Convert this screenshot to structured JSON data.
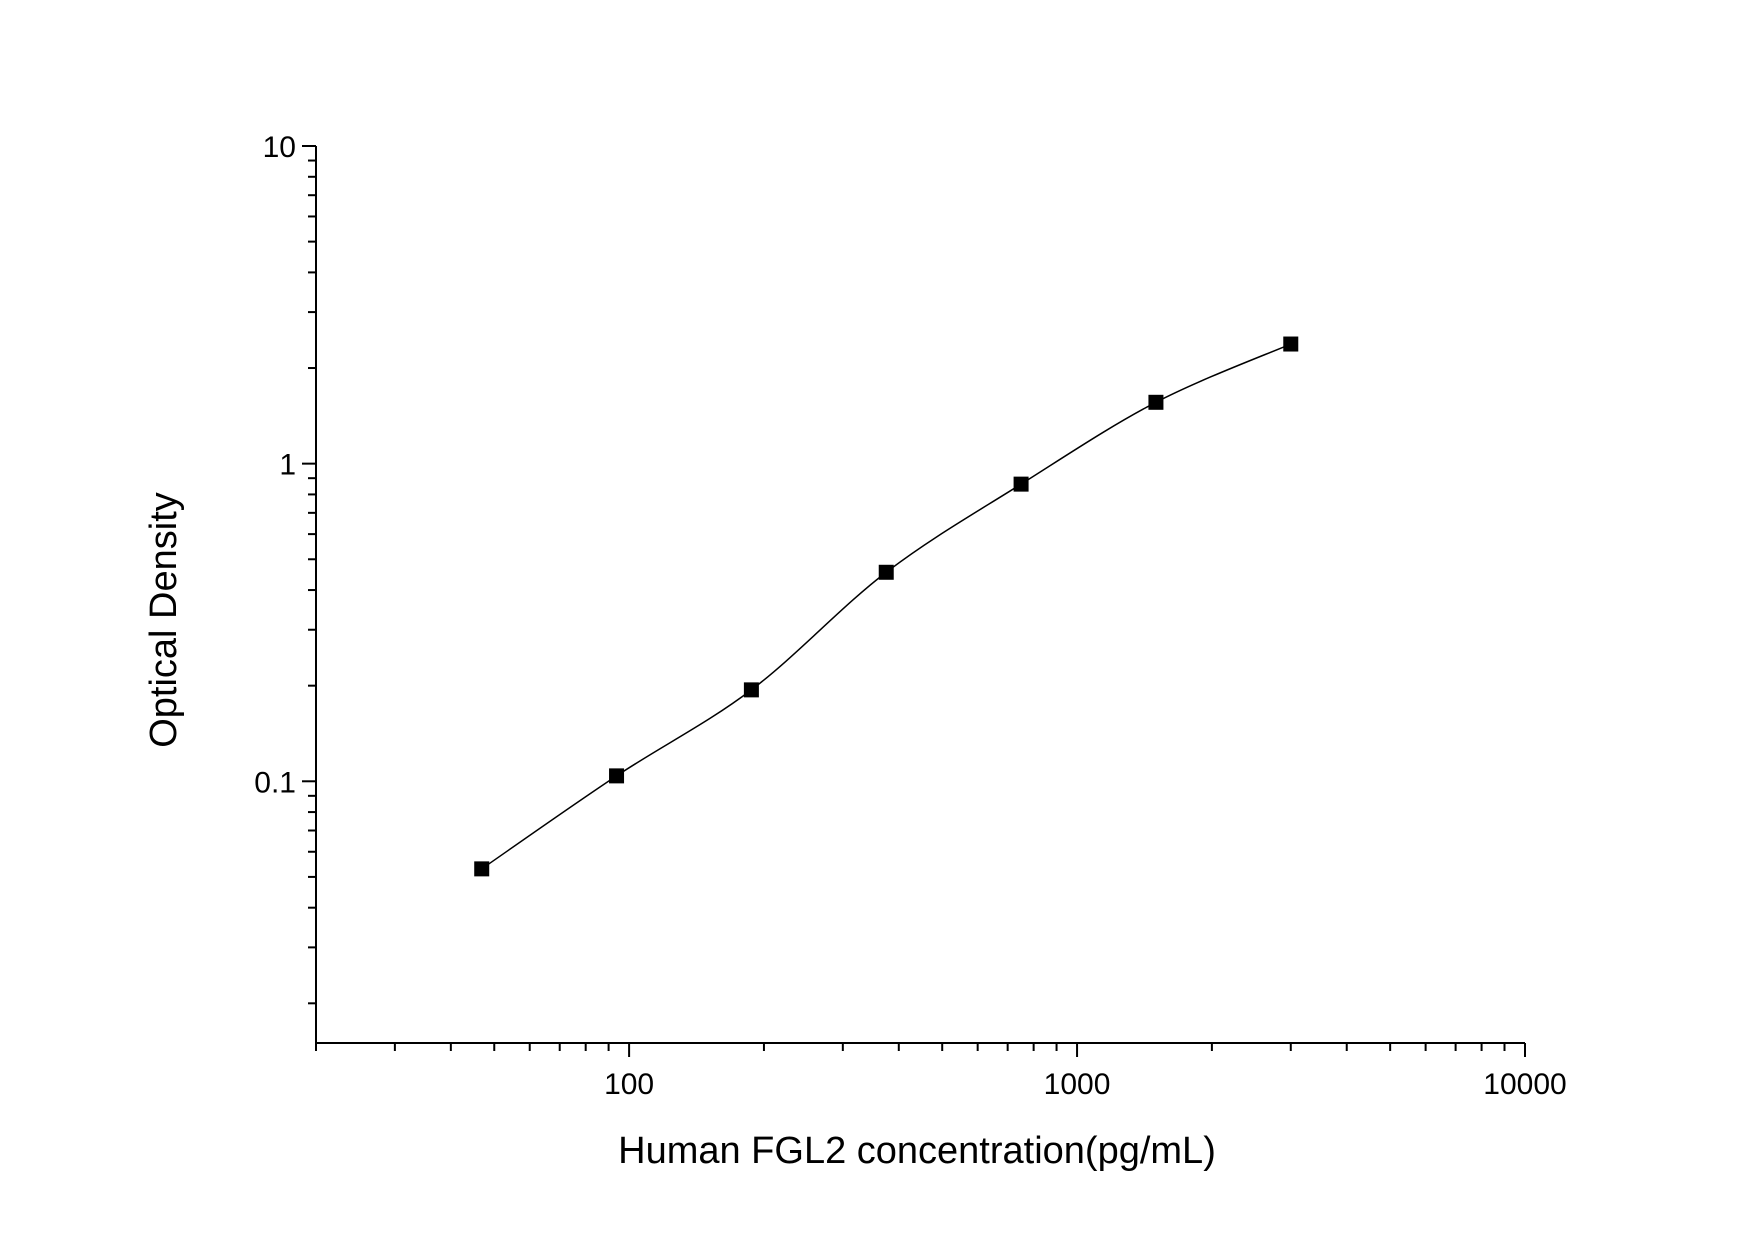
{
  "chart_data": {
    "type": "scatter",
    "title": "",
    "xlabel": "Human FGL2 concentration(pg/mL)",
    "ylabel": "Optical Density",
    "x_scale": "log",
    "y_scale": "log",
    "xlim": [
      20,
      10000
    ],
    "ylim": [
      0.015,
      10
    ],
    "x_ticks": [
      {
        "value": 100,
        "label": "100"
      },
      {
        "value": 1000,
        "label": "1000"
      },
      {
        "value": 10000,
        "label": "10000"
      }
    ],
    "y_ticks": [
      {
        "value": 0.1,
        "label": "0.1"
      },
      {
        "value": 1,
        "label": "1"
      },
      {
        "value": 10,
        "label": "10"
      }
    ],
    "grid": false,
    "legend": "none",
    "marker": "square",
    "colors": {
      "marker": "#000000",
      "line": "#000000",
      "axis": "#000000"
    },
    "series": [
      {
        "points": [
          {
            "x": 46.88,
            "y": 0.053
          },
          {
            "x": 93.75,
            "y": 0.104
          },
          {
            "x": 187.5,
            "y": 0.194
          },
          {
            "x": 375,
            "y": 0.455
          },
          {
            "x": 750,
            "y": 0.862
          },
          {
            "x": 1500,
            "y": 1.56
          },
          {
            "x": 3000,
            "y": 2.38
          }
        ],
        "fit": "smooth curve"
      }
    ]
  }
}
